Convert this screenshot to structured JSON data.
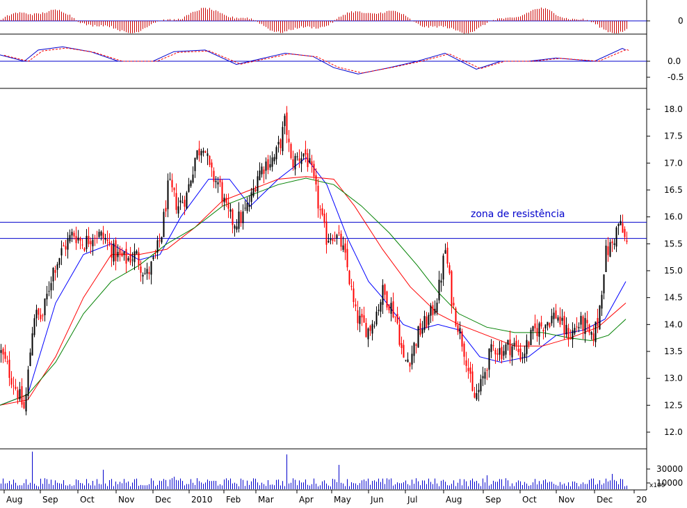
{
  "chart_data": {
    "type": "candlestick",
    "annotation": "zona de resistência",
    "colors": {
      "up_candle": "#000000",
      "down_candle": "#ff0000",
      "ma_fast": "#0000ff",
      "ma_mid": "#ff0000",
      "ma_slow": "#008000",
      "resistance_line": "#0000cc",
      "histogram": "#cc0000"
    },
    "x_axis": {
      "labels": [
        "Aug",
        "Sep",
        "Oct",
        "Nov",
        "Dec",
        "2010",
        "Feb",
        "Mar",
        "Apr",
        "May",
        "Jun",
        "Jul",
        "Aug",
        "Sep",
        "Oct",
        "Nov",
        "Dec",
        "20"
      ]
    },
    "price_panel": {
      "ylim": [
        11.6,
        18.45
      ],
      "ticks": [
        "12.0",
        "12.5",
        "13.0",
        "13.5",
        "14.0",
        "14.5",
        "15.0",
        "15.5",
        "16.0",
        "16.5",
        "17.0",
        "17.5",
        "18.0"
      ],
      "resistance_levels": [
        15.9,
        15.6
      ],
      "close_path": [
        [
          0,
          13.5
        ],
        [
          20,
          12.9
        ],
        [
          35,
          12.4
        ],
        [
          48,
          14.2
        ],
        [
          60,
          14.1
        ],
        [
          75,
          15.0
        ],
        [
          90,
          15.4
        ],
        [
          105,
          15.7
        ],
        [
          120,
          15.5
        ],
        [
          135,
          15.7
        ],
        [
          150,
          15.6
        ],
        [
          165,
          15.3
        ],
        [
          180,
          15.2
        ],
        [
          195,
          15.3
        ],
        [
          210,
          14.9
        ],
        [
          222,
          15.2
        ],
        [
          232,
          15.7
        ],
        [
          242,
          16.6
        ],
        [
          255,
          16.2
        ],
        [
          268,
          16.4
        ],
        [
          280,
          17.1
        ],
        [
          292,
          17.4
        ],
        [
          302,
          16.8
        ],
        [
          315,
          16.6
        ],
        [
          325,
          16.1
        ],
        [
          335,
          15.9
        ],
        [
          348,
          16.0
        ],
        [
          360,
          16.3
        ],
        [
          370,
          16.8
        ],
        [
          382,
          17.0
        ],
        [
          395,
          17.1
        ],
        [
          403,
          17.4
        ],
        [
          410,
          17.8
        ],
        [
          418,
          17.0
        ],
        [
          428,
          17.1
        ],
        [
          438,
          17.2
        ],
        [
          448,
          16.8
        ],
        [
          458,
          16.2
        ],
        [
          468,
          15.6
        ],
        [
          478,
          15.7
        ],
        [
          490,
          15.5
        ],
        [
          500,
          15.0
        ],
        [
          510,
          14.2
        ],
        [
          520,
          14.0
        ],
        [
          530,
          13.9
        ],
        [
          540,
          14.2
        ],
        [
          550,
          14.6
        ],
        [
          560,
          14.4
        ],
        [
          570,
          14.1
        ],
        [
          580,
          13.3
        ],
        [
          590,
          13.4
        ],
        [
          600,
          13.8
        ],
        [
          610,
          14.0
        ],
        [
          620,
          14.2
        ],
        [
          630,
          14.6
        ],
        [
          640,
          15.4
        ],
        [
          650,
          14.4
        ],
        [
          660,
          13.9
        ],
        [
          670,
          13.4
        ],
        [
          680,
          12.6
        ],
        [
          690,
          12.8
        ],
        [
          700,
          13.3
        ],
        [
          710,
          13.6
        ],
        [
          720,
          13.5
        ],
        [
          730,
          13.6
        ],
        [
          740,
          13.6
        ],
        [
          750,
          13.4
        ],
        [
          760,
          13.7
        ],
        [
          770,
          13.9
        ],
        [
          780,
          14.0
        ],
        [
          790,
          14.1
        ],
        [
          800,
          14.2
        ],
        [
          810,
          13.9
        ],
        [
          820,
          13.8
        ],
        [
          830,
          14.0
        ],
        [
          840,
          14.0
        ],
        [
          850,
          13.7
        ],
        [
          860,
          14.1
        ],
        [
          870,
          15.3
        ],
        [
          880,
          15.5
        ],
        [
          890,
          15.9
        ],
        [
          900,
          15.5
        ]
      ],
      "moving_averages": [
        {
          "name": "ma_fast",
          "points": [
            [
              0,
              12.5
            ],
            [
              40,
              12.7
            ],
            [
              80,
              14.4
            ],
            [
              120,
              15.3
            ],
            [
              160,
              15.5
            ],
            [
              200,
              15.2
            ],
            [
              230,
              15.3
            ],
            [
              260,
              16.0
            ],
            [
              300,
              16.7
            ],
            [
              330,
              16.7
            ],
            [
              360,
              16.2
            ],
            [
              400,
              16.7
            ],
            [
              440,
              17.1
            ],
            [
              470,
              16.6
            ],
            [
              500,
              15.6
            ],
            [
              530,
              14.8
            ],
            [
              550,
              14.5
            ],
            [
              580,
              14.0
            ],
            [
              600,
              13.9
            ],
            [
              630,
              14.0
            ],
            [
              660,
              13.9
            ],
            [
              690,
              13.4
            ],
            [
              720,
              13.3
            ],
            [
              760,
              13.4
            ],
            [
              800,
              13.8
            ],
            [
              840,
              13.9
            ],
            [
              870,
              14.1
            ],
            [
              900,
              14.8
            ]
          ]
        },
        {
          "name": "ma_mid",
          "points": [
            [
              0,
              12.5
            ],
            [
              40,
              12.6
            ],
            [
              80,
              13.4
            ],
            [
              120,
              14.5
            ],
            [
              160,
              15.3
            ],
            [
              200,
              15.3
            ],
            [
              240,
              15.4
            ],
            [
              280,
              15.8
            ],
            [
              320,
              16.3
            ],
            [
              360,
              16.5
            ],
            [
              400,
              16.7
            ],
            [
              440,
              16.75
            ],
            [
              480,
              16.7
            ],
            [
              510,
              16.2
            ],
            [
              550,
              15.4
            ],
            [
              590,
              14.7
            ],
            [
              630,
              14.2
            ],
            [
              660,
              14.0
            ],
            [
              700,
              13.8
            ],
            [
              740,
              13.6
            ],
            [
              780,
              13.6
            ],
            [
              820,
              13.75
            ],
            [
              860,
              13.95
            ],
            [
              900,
              14.4
            ]
          ]
        },
        {
          "name": "ma_slow",
          "points": [
            [
              0,
              12.5
            ],
            [
              40,
              12.7
            ],
            [
              80,
              13.3
            ],
            [
              120,
              14.2
            ],
            [
              160,
              14.8
            ],
            [
              200,
              15.1
            ],
            [
              240,
              15.5
            ],
            [
              280,
              15.8
            ],
            [
              320,
              16.2
            ],
            [
              360,
              16.4
            ],
            [
              400,
              16.6
            ],
            [
              440,
              16.72
            ],
            [
              480,
              16.6
            ],
            [
              520,
              16.2
            ],
            [
              560,
              15.7
            ],
            [
              600,
              15.1
            ],
            [
              630,
              14.6
            ],
            [
              660,
              14.2
            ],
            [
              700,
              13.95
            ],
            [
              740,
              13.85
            ],
            [
              780,
              13.85
            ],
            [
              820,
              13.75
            ],
            [
              850,
              13.7
            ],
            [
              875,
              13.8
            ],
            [
              900,
              14.1
            ]
          ]
        }
      ]
    },
    "oscillator_1": {
      "ticks": [
        "0"
      ]
    },
    "oscillator_2": {
      "ticks": [
        "0.0",
        "-0.5"
      ],
      "ylim": [
        -0.7,
        0.7
      ],
      "line_points": [
        [
          0,
          0.2
        ],
        [
          35,
          0.0
        ],
        [
          55,
          0.35
        ],
        [
          90,
          0.45
        ],
        [
          130,
          0.3
        ],
        [
          170,
          0.0
        ],
        [
          220,
          0.0
        ],
        [
          250,
          0.3
        ],
        [
          295,
          0.35
        ],
        [
          340,
          -0.1
        ],
        [
          410,
          0.25
        ],
        [
          450,
          0.15
        ],
        [
          480,
          -0.2
        ],
        [
          515,
          -0.4
        ],
        [
          560,
          -0.2
        ],
        [
          600,
          0.0
        ],
        [
          640,
          0.25
        ],
        [
          685,
          -0.25
        ],
        [
          720,
          0.0
        ],
        [
          760,
          0.0
        ],
        [
          800,
          0.1
        ],
        [
          855,
          0.0
        ],
        [
          895,
          0.4
        ],
        [
          900,
          0.35
        ]
      ]
    },
    "volume_panel": {
      "ticks": [
        "30000",
        "10000"
      ],
      "unit": "x100"
    }
  }
}
